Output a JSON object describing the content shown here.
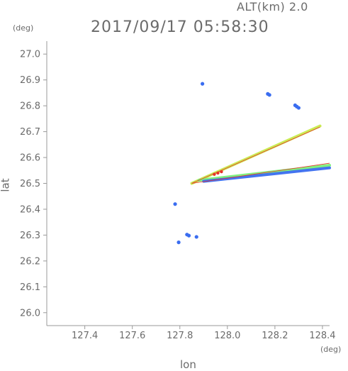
{
  "header": {
    "alt_label": "ALT(km) 2.0",
    "timestamp": "2017/09/17 05:58:30"
  },
  "chart_data": {
    "type": "scatter",
    "title": "2017/09/17 05:58:30",
    "subtitle": "ALT(km) 2.0",
    "xlabel": "lon",
    "ylabel": "lat",
    "xunit": "(deg)",
    "yunit": "(deg)",
    "xlim": [
      127.24,
      128.43
    ],
    "ylim": [
      25.95,
      27.05
    ],
    "xticks": [
      127.4,
      127.6,
      127.8,
      128.0,
      128.2,
      128.4
    ],
    "yticks": [
      26.0,
      26.1,
      26.2,
      26.3,
      26.4,
      26.5,
      26.6,
      26.7,
      26.8,
      26.9,
      27.0
    ],
    "grid": false,
    "colors": {
      "axis": "#9a9a9a",
      "text": "#6b6b6b",
      "blue": "#3a6df0",
      "cyan": "#32d8c8",
      "green": "#7cf07a",
      "yellow_green": "#c8ec4a",
      "red": "#e8322a"
    },
    "echo_points": [
      {
        "lon": 127.895,
        "lat": 26.885,
        "color": "blue"
      },
      {
        "lon": 128.17,
        "lat": 26.846,
        "color": "blue"
      },
      {
        "lon": 128.177,
        "lat": 26.842,
        "color": "blue"
      },
      {
        "lon": 128.285,
        "lat": 26.802,
        "color": "blue"
      },
      {
        "lon": 128.292,
        "lat": 26.797,
        "color": "blue"
      },
      {
        "lon": 128.3,
        "lat": 26.792,
        "color": "blue"
      },
      {
        "lon": 127.83,
        "lat": 26.302,
        "color": "blue"
      },
      {
        "lon": 127.838,
        "lat": 26.298,
        "color": "blue"
      },
      {
        "lon": 127.87,
        "lat": 26.293,
        "color": "blue"
      },
      {
        "lon": 127.78,
        "lat": 26.42,
        "color": "blue"
      },
      {
        "lon": 127.795,
        "lat": 26.272,
        "color": "blue"
      },
      {
        "lon": 127.945,
        "lat": 26.535,
        "color": "red"
      },
      {
        "lon": 127.96,
        "lat": 26.54,
        "color": "red"
      },
      {
        "lon": 127.975,
        "lat": 26.545,
        "color": "red"
      }
    ],
    "echo_bands": [
      {
        "from_lon": 127.85,
        "from_lat": 26.5,
        "to_lon": 128.39,
        "to_lat": 26.722,
        "color": "yellow_green"
      },
      {
        "from_lon": 127.88,
        "from_lat": 26.512,
        "to_lon": 128.43,
        "to_lat": 26.57,
        "color": "green"
      },
      {
        "from_lon": 127.9,
        "from_lat": 26.508,
        "to_lon": 128.43,
        "to_lat": 26.56,
        "color": "blue"
      }
    ],
    "echo_outline": [
      {
        "from_lon": 127.85,
        "from_lat": 26.5,
        "to_lon": 128.39,
        "to_lat": 26.718
      },
      {
        "from_lon": 127.85,
        "from_lat": 26.5,
        "to_lon": 128.43,
        "to_lat": 26.578
      }
    ]
  }
}
